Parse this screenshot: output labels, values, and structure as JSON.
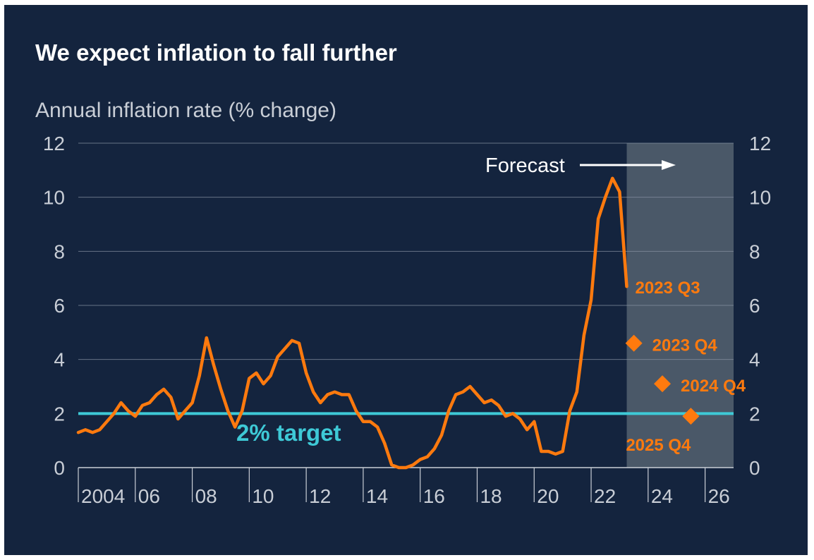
{
  "chart_data": {
    "type": "line",
    "title": "We expect inflation to fall further",
    "ylabel": "Annual inflation rate (% change)",
    "xlabel": "",
    "ylim": [
      0,
      12
    ],
    "xlim": [
      2004,
      2027
    ],
    "y_ticks": [
      0,
      2,
      4,
      6,
      8,
      10,
      12
    ],
    "y_tick_labels": [
      "0",
      "2",
      "4",
      "6",
      "8",
      "10",
      "12"
    ],
    "x_ticks": [
      2004,
      2006,
      2008,
      2010,
      2012,
      2014,
      2016,
      2018,
      2020,
      2022,
      2024,
      2026
    ],
    "x_tick_labels": [
      "2004",
      "06",
      "08",
      "10",
      "12",
      "14",
      "16",
      "18",
      "20",
      "22",
      "24",
      "26"
    ],
    "grid": true,
    "secondary_y_axis": true,
    "series": [
      {
        "values_x": [
          2004.0,
          2004.25,
          2004.5,
          2004.75,
          2005.0,
          2005.25,
          2005.5,
          2005.75,
          2006.0,
          2006.25,
          2006.5,
          2006.75,
          2007.0,
          2007.25,
          2007.5,
          2007.75,
          2008.0,
          2008.25,
          2008.5,
          2008.75,
          2009.0,
          2009.25,
          2009.5,
          2009.75,
          2010.0,
          2010.25,
          2010.5,
          2010.75,
          2011.0,
          2011.25,
          2011.5,
          2011.75,
          2012.0,
          2012.25,
          2012.5,
          2012.75,
          2013.0,
          2013.25,
          2013.5,
          2013.75,
          2014.0,
          2014.25,
          2014.5,
          2014.75,
          2015.0,
          2015.25,
          2015.5,
          2015.75,
          2016.0,
          2016.25,
          2016.5,
          2016.75,
          2017.0,
          2017.25,
          2017.5,
          2017.75,
          2018.0,
          2018.25,
          2018.5,
          2018.75,
          2019.0,
          2019.25,
          2019.5,
          2019.75,
          2020.0,
          2020.25,
          2020.5,
          2020.75,
          2021.0,
          2021.25,
          2021.5,
          2021.75,
          2022.0,
          2022.25,
          2022.5,
          2022.75,
          2023.0,
          2023.25
        ],
        "values_y": [
          1.3,
          1.4,
          1.3,
          1.4,
          1.7,
          2.0,
          2.4,
          2.1,
          1.9,
          2.3,
          2.4,
          2.7,
          2.9,
          2.6,
          1.8,
          2.1,
          2.4,
          3.4,
          4.8,
          3.8,
          2.9,
          2.1,
          1.5,
          2.1,
          3.3,
          3.5,
          3.1,
          3.4,
          4.1,
          4.4,
          4.7,
          4.6,
          3.5,
          2.8,
          2.4,
          2.7,
          2.8,
          2.7,
          2.7,
          2.1,
          1.7,
          1.7,
          1.5,
          0.9,
          0.1,
          0.0,
          0.0,
          0.1,
          0.3,
          0.4,
          0.7,
          1.2,
          2.1,
          2.7,
          2.8,
          3.0,
          2.7,
          2.4,
          2.5,
          2.3,
          1.9,
          2.0,
          1.8,
          1.4,
          1.7,
          0.6,
          0.6,
          0.5,
          0.6,
          2.1,
          2.8,
          4.9,
          6.2,
          9.2,
          10.0,
          10.7,
          10.2,
          6.7
        ]
      }
    ],
    "target": {
      "value": 2,
      "label": "2% target"
    },
    "forecast": {
      "label": "Forecast",
      "start": 2023.25,
      "end": 2027.0,
      "points": [
        {
          "x": 2023.5,
          "y": 4.6,
          "label": "2023 Q4"
        },
        {
          "x": 2024.5,
          "y": 3.1,
          "label": "2024 Q4"
        },
        {
          "x": 2025.5,
          "y": 1.9,
          "label": "2025 Q4"
        }
      ]
    },
    "last_actual_label": "2023 Q3",
    "colors": {
      "background": "#14243e",
      "line": "#ff7a0e",
      "target": "#3ec9d6",
      "forecast_shade": "#4a5868",
      "grid": "#8a95a5",
      "tick_text": "#c9ced6",
      "title_text": "#ffffff"
    }
  }
}
